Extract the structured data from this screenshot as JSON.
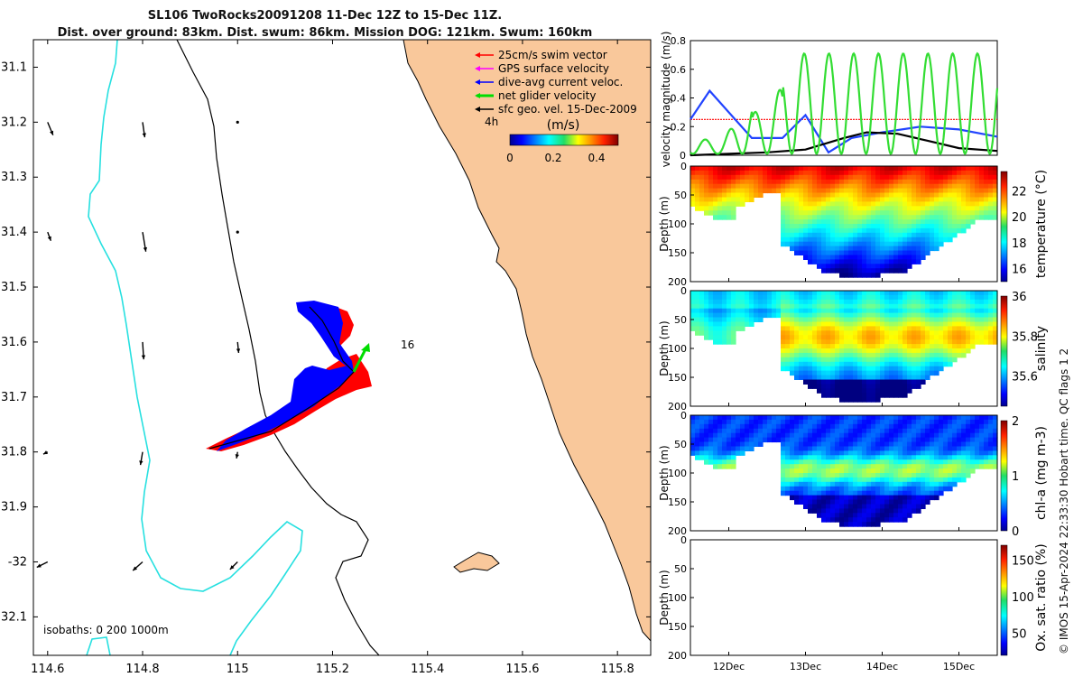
{
  "header": {
    "title_line1": "SL106 TwoRocks20091208 11-Dec 12Z to 15-Dec 11Z.",
    "title_line2": "Dist. over ground: 83km. Dist. swum: 86km. Mission DOG: 121km. Swum: 160km"
  },
  "credit": "© IMOS 15-Apr-2024 22:33:30 Hobart time. QC flags 1  2",
  "colors": {
    "land": "#f9c89b",
    "coast": "#000000",
    "isobath_shallow": "#000000",
    "isobath_deep": "#27e0e0",
    "swim_vector": "#ff0000",
    "gps_velocity": "#ff00ff",
    "current": "#0000ff",
    "net_velocity": "#00dd00",
    "geo_velocity": "#000000"
  },
  "chart_data": [
    {
      "type": "scatter",
      "name": "map",
      "xlim": [
        114.57,
        115.87
      ],
      "ylim": [
        -32.17,
        -31.05
      ],
      "xticks": [
        114.6,
        114.8,
        115,
        115.2,
        115.4,
        115.6,
        115.8
      ],
      "xtick_labels": [
        "114.6",
        "114.8",
        "115",
        "115.2",
        "115.4",
        "115.6",
        "115.8"
      ],
      "yticks": [
        -31.1,
        -31.2,
        -31.3,
        -31.4,
        -31.5,
        -31.6,
        -31.7,
        -31.8,
        -31.9,
        -32,
        -32.1
      ],
      "ytick_labels": [
        "31.1",
        "31.2",
        "31.3",
        "31.4",
        "31.5",
        "31.6",
        "31.7",
        "31.8",
        "31.9",
        "-32",
        "32.1"
      ],
      "legend": {
        "position": "top-right",
        "entries": [
          {
            "label": "25cm/s swim vector",
            "color": "#ff0000"
          },
          {
            "label": "GPS surface velocity",
            "color": "#ff00ff"
          },
          {
            "label": "dive-avg current veloc.",
            "color": "#0000ff"
          },
          {
            "label": "net glider velocity",
            "color": "#00dd00"
          },
          {
            "label": "sfc geo. vel. 15-Dec-2009",
            "color": "#000000"
          }
        ]
      },
      "colorbar": {
        "label": "(m/s)",
        "ticks": [
          "0",
          "0.2",
          "0.4"
        ],
        "range": [
          0,
          0.5
        ]
      },
      "annotations": {
        "time_marker": "4h",
        "day_marker": "16",
        "isobaths": "isobaths: 0   200  1000m"
      },
      "glider_track": [
        {
          "lon": 115.12,
          "lat": -31.73
        },
        {
          "lon": 115.22,
          "lat": -31.69
        },
        {
          "lon": 115.25,
          "lat": -31.66
        },
        {
          "lon": 115.18,
          "lat": -31.57
        }
      ],
      "geo_vectors": [
        {
          "lon": 114.6,
          "lat": -31.2,
          "u": 0.005,
          "v": -0.012
        },
        {
          "lon": 114.8,
          "lat": -31.2,
          "u": 0.002,
          "v": -0.014
        },
        {
          "lon": 115.0,
          "lat": -31.2,
          "u": 0.001,
          "v": -0.002
        },
        {
          "lon": 114.6,
          "lat": -31.4,
          "u": 0.003,
          "v": -0.008
        },
        {
          "lon": 114.8,
          "lat": -31.4,
          "u": 0.003,
          "v": -0.018
        },
        {
          "lon": 115.0,
          "lat": -31.4,
          "u": 0.001,
          "v": -0.002
        },
        {
          "lon": 114.8,
          "lat": -31.6,
          "u": 0.001,
          "v": -0.016
        },
        {
          "lon": 115.0,
          "lat": -31.6,
          "u": 0.001,
          "v": -0.01
        },
        {
          "lon": 114.6,
          "lat": -31.8,
          "u": -0.004,
          "v": -0.002
        },
        {
          "lon": 114.8,
          "lat": -31.8,
          "u": -0.002,
          "v": -0.012
        },
        {
          "lon": 115.0,
          "lat": -31.8,
          "u": -0.001,
          "v": -0.006
        },
        {
          "lon": 114.6,
          "lat": -32.0,
          "u": -0.01,
          "v": -0.005
        },
        {
          "lon": 114.8,
          "lat": -32.0,
          "u": -0.009,
          "v": -0.008
        },
        {
          "lon": 115.0,
          "lat": -32.0,
          "u": -0.007,
          "v": -0.007
        }
      ]
    },
    {
      "type": "line",
      "name": "velocity",
      "ylabel": "velocity magnitude (m/s)",
      "ylim": [
        0,
        0.8
      ],
      "yticks": [
        "0",
        "0.2",
        "0.4",
        "0.6",
        "0.8"
      ],
      "xlim": [
        11.5,
        15.5
      ],
      "series": [
        {
          "color": "#ff0000",
          "x": [
            11.5,
            15.5
          ],
          "y": [
            0.25,
            0.25
          ]
        },
        {
          "color": "#2244ff",
          "x": [
            11.5,
            11.75,
            12.0,
            12.3,
            12.7,
            13.0,
            13.3,
            13.6,
            14.0,
            14.5,
            15.0,
            15.5
          ],
          "y": [
            0.25,
            0.45,
            0.3,
            0.12,
            0.12,
            0.28,
            0.02,
            0.12,
            0.16,
            0.2,
            0.18,
            0.13
          ]
        },
        {
          "color": "#000000",
          "x": [
            11.5,
            12.0,
            12.5,
            13.0,
            13.5,
            13.8,
            14.2,
            14.6,
            15.0,
            15.5
          ],
          "y": [
            0.0,
            0.01,
            0.02,
            0.04,
            0.12,
            0.16,
            0.15,
            0.1,
            0.05,
            0.03
          ]
        },
        {
          "color": "#33dd33",
          "x": [
            11.5,
            15.5
          ],
          "y": [
            0.05,
            0.45
          ],
          "style": "oscillating"
        }
      ]
    },
    {
      "type": "heatmap",
      "name": "temperature",
      "ylabel": "Depth (m)",
      "yticks": [
        "0",
        "50",
        "100",
        "150",
        "200"
      ],
      "colorbar_label": "temperature (°C)",
      "colorbar_ticks": [
        "22",
        "20",
        "18",
        "16"
      ],
      "range": [
        15,
        23.5
      ]
    },
    {
      "type": "heatmap",
      "name": "salinity",
      "ylabel": "Depth (m)",
      "yticks": [
        "0",
        "50",
        "100",
        "150",
        "200"
      ],
      "colorbar_label": "salinity",
      "colorbar_ticks": [
        "36",
        "35.8",
        "35.6"
      ],
      "range": [
        35.45,
        36.0
      ]
    },
    {
      "type": "heatmap",
      "name": "chl-a",
      "ylabel": "Depth (m)",
      "yticks": [
        "0",
        "50",
        "100",
        "150",
        "200"
      ],
      "colorbar_label": "chl-a (mg m-3)",
      "colorbar_ticks": [
        "2",
        "1",
        "0"
      ],
      "range": [
        0,
        2
      ]
    },
    {
      "type": "heatmap",
      "name": "oxygen",
      "ylabel": "Depth (m)",
      "yticks": [
        "0",
        "50",
        "100",
        "150",
        "200"
      ],
      "colorbar_label": "Ox. sat. ratio (%)",
      "colorbar_ticks": [
        "150",
        "100",
        "50"
      ],
      "range": [
        20,
        170
      ],
      "xtick_labels": [
        "12Dec",
        "13Dec",
        "14Dec",
        "15Dec"
      ],
      "xticks": [
        12,
        13,
        14,
        15
      ]
    }
  ]
}
